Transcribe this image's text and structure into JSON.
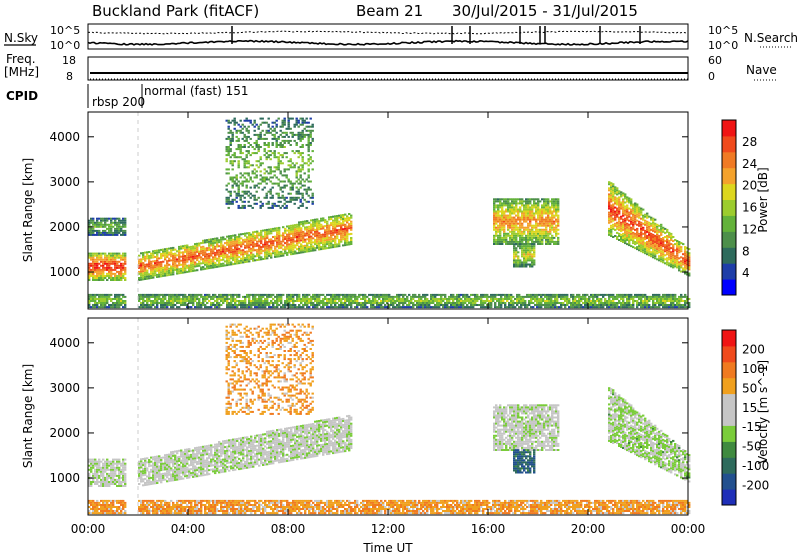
{
  "header": {
    "station": "Buckland Park (fitACF)",
    "beam": "Beam 21",
    "date_range": "30/Jul/2015 - 31/Jul/2015"
  },
  "summary_panels": {
    "nsky_label": "N.Sky",
    "nsearch_label": "N.Search",
    "nsky_ticks": [
      "10^5",
      "10^0"
    ],
    "nsearch_ticks": [
      "10^5",
      "10^0"
    ],
    "freq_label_line1": "Freq.",
    "freq_label_line2": "[MHz]",
    "freq_ticks": [
      "18",
      "8"
    ],
    "nave_label": "Nave",
    "nave_ticks": [
      "60",
      "0"
    ],
    "cpid_label": "CPID",
    "cpid_entries": [
      "rbsp 200",
      "normal (fast) 151"
    ]
  },
  "colors": {
    "power_scale": [
      "#0000ff",
      "#1e3ea8",
      "#2e6b5c",
      "#4d8f4a",
      "#63b23a",
      "#9ccc2e",
      "#ddd61e",
      "#f4a22c",
      "#f07a24",
      "#f04a1c",
      "#f01414"
    ],
    "velocity_scale": [
      "#1f2fb8",
      "#22508e",
      "#2e6b5c",
      "#3f8a3f",
      "#7acc3a",
      "#c6c6c6",
      "#c6c6c6",
      "#f0a01e",
      "#f07a20",
      "#f04a1c",
      "#f01414"
    ]
  },
  "chart_data": [
    {
      "type": "heatmap",
      "panel": "power",
      "ylabel": "Slant Range [km]",
      "xlabel": "",
      "y_ticks": [
        "1000",
        "2000",
        "3000",
        "4000"
      ],
      "xlim": [
        0,
        24
      ],
      "ylim": [
        180,
        4550
      ],
      "x_ticks": [
        "00:00",
        "04:00",
        "08:00",
        "12:00",
        "16:00",
        "20:00",
        "00:00"
      ],
      "colorbar_label": "Power [dB]",
      "colorbar_ticks": [
        "4",
        "8",
        "12",
        "16",
        "20",
        "24",
        "28"
      ],
      "regions": [
        {
          "name": "early-band",
          "t": [
            0.0,
            1.5
          ],
          "r": [
            800,
            1400
          ],
          "level": 0.95
        },
        {
          "name": "early-upper",
          "t": [
            0.0,
            1.5
          ],
          "r": [
            1800,
            2200
          ],
          "level": 0.4
        },
        {
          "name": "main-rise",
          "t": [
            2.0,
            10.5
          ],
          "r_start": [
            800,
            1400
          ],
          "r_end": [
            1600,
            2300
          ],
          "level": 0.85
        },
        {
          "name": "upper-scatter",
          "t": [
            5.5,
            9.0
          ],
          "r": [
            2400,
            4400
          ],
          "level": 0.45
        },
        {
          "name": "late-patch-1",
          "t": [
            16.2,
            18.8
          ],
          "r": [
            1600,
            2600
          ],
          "level": 0.75
        },
        {
          "name": "late-patch-2",
          "t": [
            17.0,
            17.8
          ],
          "r": [
            1100,
            1600
          ],
          "level": 0.6
        },
        {
          "name": "dusk-band",
          "t": [
            20.8,
            24.0
          ],
          "r_start": [
            1800,
            3000
          ],
          "r_end": [
            900,
            1500
          ],
          "level": 0.9
        },
        {
          "name": "ground-scatter",
          "t": [
            0.0,
            24.0
          ],
          "r": [
            200,
            500
          ],
          "level": 0.5
        }
      ]
    },
    {
      "type": "heatmap",
      "panel": "velocity",
      "ylabel": "Slant Range [km]",
      "xlabel": "Time UT",
      "y_ticks": [
        "1000",
        "2000",
        "3000",
        "4000"
      ],
      "xlim": [
        0,
        24
      ],
      "ylim": [
        180,
        4550
      ],
      "x_ticks": [
        "00:00",
        "04:00",
        "08:00",
        "12:00",
        "16:00",
        "20:00",
        "00:00"
      ],
      "colorbar_label": "Velocity [m s^-1]",
      "colorbar_ticks": [
        "200",
        "100",
        "50",
        "15",
        "-15",
        "-50",
        "-100",
        "-200"
      ],
      "regions": [
        {
          "name": "early-band",
          "t": [
            0.0,
            1.5
          ],
          "r": [
            800,
            1400
          ],
          "level": 0.5
        },
        {
          "name": "main-rise",
          "t": [
            2.0,
            10.5
          ],
          "r_start": [
            800,
            1400
          ],
          "r_end": [
            1600,
            2400
          ],
          "level": 0.5
        },
        {
          "name": "upper-scatter",
          "t": [
            5.5,
            9.0
          ],
          "r": [
            2400,
            4400
          ],
          "level": 0.7
        },
        {
          "name": "late-patch-1",
          "t": [
            16.2,
            18.8
          ],
          "r": [
            1600,
            2600
          ],
          "level": 0.5
        },
        {
          "name": "late-patch-2",
          "t": [
            17.0,
            17.8
          ],
          "r": [
            1100,
            1600
          ],
          "level": 0.2
        },
        {
          "name": "dusk-band",
          "t": [
            20.8,
            24.0
          ],
          "r_start": [
            1800,
            3000
          ],
          "r_end": [
            900,
            1500
          ],
          "level": 0.45
        },
        {
          "name": "ground-scatter",
          "t": [
            0.0,
            24.0
          ],
          "r": [
            200,
            500
          ],
          "level": 0.7
        }
      ]
    }
  ]
}
